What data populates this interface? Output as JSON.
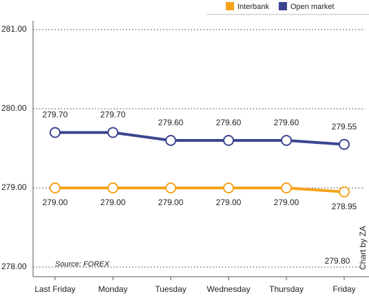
{
  "chart_data": {
    "type": "line",
    "categories": [
      "Last Friday",
      "Monday",
      "Tuesday",
      "Wednesday",
      "Thursday",
      "Friday"
    ],
    "series": [
      {
        "name": "Interbank",
        "color": "#f5a31a",
        "label_position": "below",
        "values": [
          279.0,
          279.0,
          279.0,
          279.0,
          279.0,
          278.95
        ],
        "value_labels": [
          "279.00",
          "279.00",
          "279.00",
          "279.00",
          "279.00",
          "278.95"
        ]
      },
      {
        "name": "Open market",
        "color": "#3b4590",
        "label_position": "above",
        "values": [
          279.7,
          279.7,
          279.6,
          279.6,
          279.6,
          279.55
        ],
        "value_labels": [
          "279.70",
          "279.70",
          "279.60",
          "279.60",
          "279.60",
          "279.55"
        ]
      }
    ],
    "ylim": [
      278,
      281
    ],
    "yticks": [
      {
        "value": 278,
        "label": "278.00"
      },
      {
        "value": 279,
        "label": "279.00"
      },
      {
        "value": 280,
        "label": "280.00"
      },
      {
        "value": 281,
        "label": "281.00"
      }
    ],
    "grid": true,
    "legend": "top-right",
    "annotations": [
      "Source: FOREX",
      "Chart by ZA",
      "279.80"
    ]
  }
}
